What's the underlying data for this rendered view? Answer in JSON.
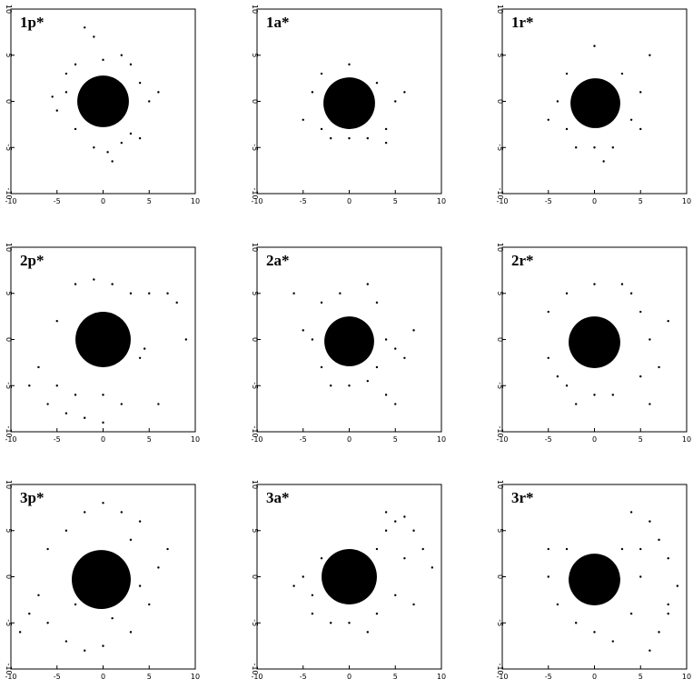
{
  "chart_data": [
    {
      "type": "scatter",
      "title": "1p*",
      "xlim": [
        -10,
        10
      ],
      "ylim": [
        -10,
        10
      ],
      "xticks": [
        -10,
        -5,
        0,
        5,
        10
      ],
      "yticks": [
        -10,
        -5,
        0,
        5,
        10
      ],
      "x": [
        0,
        -4,
        4,
        -3,
        3,
        0,
        -1,
        1,
        5,
        -5,
        -2,
        -1,
        2,
        4,
        -4,
        2,
        -3,
        6,
        -5.5,
        0.5,
        3
      ],
      "y": [
        0,
        1,
        2,
        -3,
        -3.5,
        4.5,
        -5,
        -6.5,
        0,
        -1,
        8,
        7,
        5,
        -4,
        3,
        -4.5,
        4,
        1,
        0.5,
        -5.5,
        4
      ],
      "sizes": [
        2.8,
        0.12,
        0.12,
        0.12,
        0.12,
        0.12,
        0.12,
        0.12,
        0.12,
        0.12,
        0.12,
        0.12,
        0.12,
        0.12,
        0.12,
        0.12,
        0.12,
        0.12,
        0.12,
        0.12,
        0.12
      ]
    },
    {
      "type": "scatter",
      "title": "1a*",
      "xlim": [
        -10,
        10
      ],
      "ylim": [
        -10,
        10
      ],
      "xticks": [
        -10,
        -5,
        0,
        5,
        10
      ],
      "yticks": [
        -10,
        -5,
        0,
        5,
        10
      ],
      "x": [
        0,
        -3,
        3,
        4,
        -3,
        0,
        -4,
        5,
        4,
        0,
        -2,
        2,
        6,
        -5
      ],
      "y": [
        -0.2,
        3,
        2,
        -3,
        -3,
        -4,
        1,
        0,
        -4.5,
        4,
        -4,
        -4,
        1,
        -2
      ],
      "sizes": [
        2.8,
        0.12,
        0.12,
        0.12,
        0.12,
        0.12,
        0.12,
        0.12,
        0.12,
        0.12,
        0.12,
        0.12,
        0.12,
        0.12
      ]
    },
    {
      "type": "scatter",
      "title": "1r*",
      "xlim": [
        -10,
        10
      ],
      "ylim": [
        -10,
        10
      ],
      "xticks": [
        -10,
        -5,
        0,
        5,
        10
      ],
      "yticks": [
        -10,
        -5,
        0,
        5,
        10
      ],
      "x": [
        0.1,
        -3,
        3,
        4,
        -3,
        0,
        -4,
        5,
        0,
        6,
        2,
        -2,
        -5,
        5,
        1
      ],
      "y": [
        -0.2,
        3,
        3,
        -2,
        -3,
        -5,
        0,
        1,
        6,
        5,
        -5,
        -5,
        -2,
        -3,
        -6.5
      ],
      "sizes": [
        2.7,
        0.12,
        0.12,
        0.12,
        0.12,
        0.12,
        0.12,
        0.12,
        0.12,
        0.12,
        0.12,
        0.12,
        0.12,
        0.12,
        0.12
      ]
    },
    {
      "type": "scatter",
      "title": "2p*",
      "xlim": [
        -10,
        10
      ],
      "ylim": [
        -10,
        10
      ],
      "xticks": [
        -10,
        -5,
        0,
        5,
        10
      ],
      "yticks": [
        -10,
        -5,
        0,
        5,
        10
      ],
      "x": [
        0,
        -5,
        -6,
        -4,
        -2,
        0,
        2,
        -7,
        -8,
        -3,
        -1,
        1,
        3,
        5,
        7,
        8,
        9,
        4,
        4.5,
        -5,
        6,
        -3,
        0
      ],
      "y": [
        0,
        -5,
        -7,
        -8,
        -8.5,
        -9,
        -7,
        -3,
        -5,
        6,
        6.5,
        6,
        5,
        5,
        5,
        4,
        0,
        -2,
        -1,
        2,
        -7,
        -6,
        -6
      ],
      "sizes": [
        3,
        0.12,
        0.12,
        0.12,
        0.12,
        0.12,
        0.12,
        0.12,
        0.12,
        0.12,
        0.12,
        0.12,
        0.12,
        0.12,
        0.12,
        0.12,
        0.12,
        0.12,
        0.12,
        0.12,
        0.12,
        0.12,
        0.12
      ]
    },
    {
      "type": "scatter",
      "title": "2a*",
      "xlim": [
        -10,
        10
      ],
      "ylim": [
        -10,
        10
      ],
      "xticks": [
        -10,
        -5,
        0,
        5,
        10
      ],
      "yticks": [
        -10,
        -5,
        0,
        5,
        10
      ],
      "x": [
        0,
        -3,
        3,
        -4,
        4,
        0,
        -2,
        2,
        5,
        -5,
        6,
        4,
        -6,
        2,
        -1,
        3,
        -3,
        7,
        5
      ],
      "y": [
        -0.2,
        4,
        4,
        0,
        0,
        -5,
        -5,
        -4.5,
        -1,
        1,
        -2,
        -6,
        5,
        6,
        5,
        -3,
        -3,
        1,
        -7
      ],
      "sizes": [
        2.7,
        0.12,
        0.12,
        0.12,
        0.12,
        0.12,
        0.12,
        0.12,
        0.12,
        0.12,
        0.12,
        0.12,
        0.12,
        0.12,
        0.12,
        0.12,
        0.12,
        0.12,
        0.12
      ]
    },
    {
      "type": "scatter",
      "title": "2r*",
      "xlim": [
        -10,
        10
      ],
      "ylim": [
        -10,
        10
      ],
      "xticks": [
        -10,
        -5,
        0,
        5,
        10
      ],
      "yticks": [
        -10,
        -5,
        0,
        5,
        10
      ],
      "x": [
        0,
        -3,
        0,
        3,
        5,
        6,
        5,
        0,
        -3,
        -5,
        -5,
        7,
        6,
        -2,
        2,
        4,
        -4,
        8
      ],
      "y": [
        -0.3,
        5,
        6,
        6,
        3,
        0,
        -4,
        -6,
        -5,
        -2,
        3,
        -3,
        -7,
        -7,
        -6,
        5,
        -4,
        2
      ],
      "sizes": [
        2.8,
        0.12,
        0.12,
        0.12,
        0.12,
        0.12,
        0.12,
        0.12,
        0.12,
        0.12,
        0.12,
        0.12,
        0.12,
        0.12,
        0.12,
        0.12,
        0.12,
        0.12
      ]
    },
    {
      "type": "scatter",
      "title": "3p*",
      "xlim": [
        -10,
        10
      ],
      "ylim": [
        -10,
        10
      ],
      "xticks": [
        -10,
        -5,
        0,
        5,
        10
      ],
      "yticks": [
        -10,
        -5,
        0,
        5,
        10
      ],
      "x": [
        -0.2,
        -2,
        0,
        2,
        4,
        -4,
        -6,
        -7,
        -6,
        -4,
        -2,
        0,
        3,
        5,
        6,
        7,
        -8,
        -9,
        3,
        -3,
        4,
        1
      ],
      "y": [
        -0.3,
        7,
        8,
        7,
        6,
        5,
        3,
        -2,
        -5,
        -7,
        -8,
        -7.5,
        -6,
        -3,
        1,
        3,
        -4,
        -6,
        4,
        -3,
        -1,
        -4.5
      ],
      "sizes": [
        3.2,
        0.12,
        0.12,
        0.12,
        0.12,
        0.12,
        0.12,
        0.12,
        0.12,
        0.12,
        0.12,
        0.12,
        0.12,
        0.12,
        0.12,
        0.12,
        0.12,
        0.12,
        0.12,
        0.12,
        0.12,
        0.12
      ]
    },
    {
      "type": "scatter",
      "title": "3a*",
      "xlim": [
        -10,
        10
      ],
      "ylim": [
        -10,
        10
      ],
      "xticks": [
        -10,
        -5,
        0,
        5,
        10
      ],
      "yticks": [
        -10,
        -5,
        0,
        5,
        10
      ],
      "x": [
        0,
        -4,
        0,
        3,
        -5,
        4,
        5,
        6,
        7,
        8,
        6,
        3,
        -3,
        5,
        -4,
        2,
        -2,
        7,
        9,
        4,
        -6
      ],
      "y": [
        0,
        -4,
        -5,
        -4,
        0,
        5,
        6,
        6.5,
        5,
        3,
        2,
        3,
        2,
        -2,
        -2,
        -6,
        -5,
        -3,
        1,
        7,
        -1
      ],
      "sizes": [
        3,
        0.12,
        0.12,
        0.12,
        0.12,
        0.12,
        0.12,
        0.12,
        0.12,
        0.12,
        0.12,
        0.12,
        0.12,
        0.12,
        0.12,
        0.12,
        0.12,
        0.12,
        0.12,
        0.12,
        0.12
      ]
    },
    {
      "type": "scatter",
      "title": "3r*",
      "xlim": [
        -10,
        10
      ],
      "ylim": [
        -10,
        10
      ],
      "xticks": [
        -10,
        -5,
        0,
        5,
        10
      ],
      "yticks": [
        -10,
        -5,
        0,
        5,
        10
      ],
      "x": [
        0,
        -3,
        3,
        -4,
        4,
        0,
        -5,
        5,
        6,
        7,
        8,
        9,
        8,
        7,
        6,
        4,
        -2,
        2,
        -5,
        5,
        8
      ],
      "y": [
        -0.3,
        3,
        3,
        -3,
        -4,
        -6,
        0,
        0,
        6,
        4,
        2,
        -1,
        -3,
        -6,
        -8,
        7,
        -5,
        -7,
        3,
        3,
        -4
      ],
      "sizes": [
        2.8,
        0.12,
        0.12,
        0.12,
        0.12,
        0.12,
        0.12,
        0.12,
        0.12,
        0.12,
        0.12,
        0.12,
        0.12,
        0.12,
        0.12,
        0.12,
        0.12,
        0.12,
        0.12,
        0.12,
        0.12
      ]
    }
  ]
}
